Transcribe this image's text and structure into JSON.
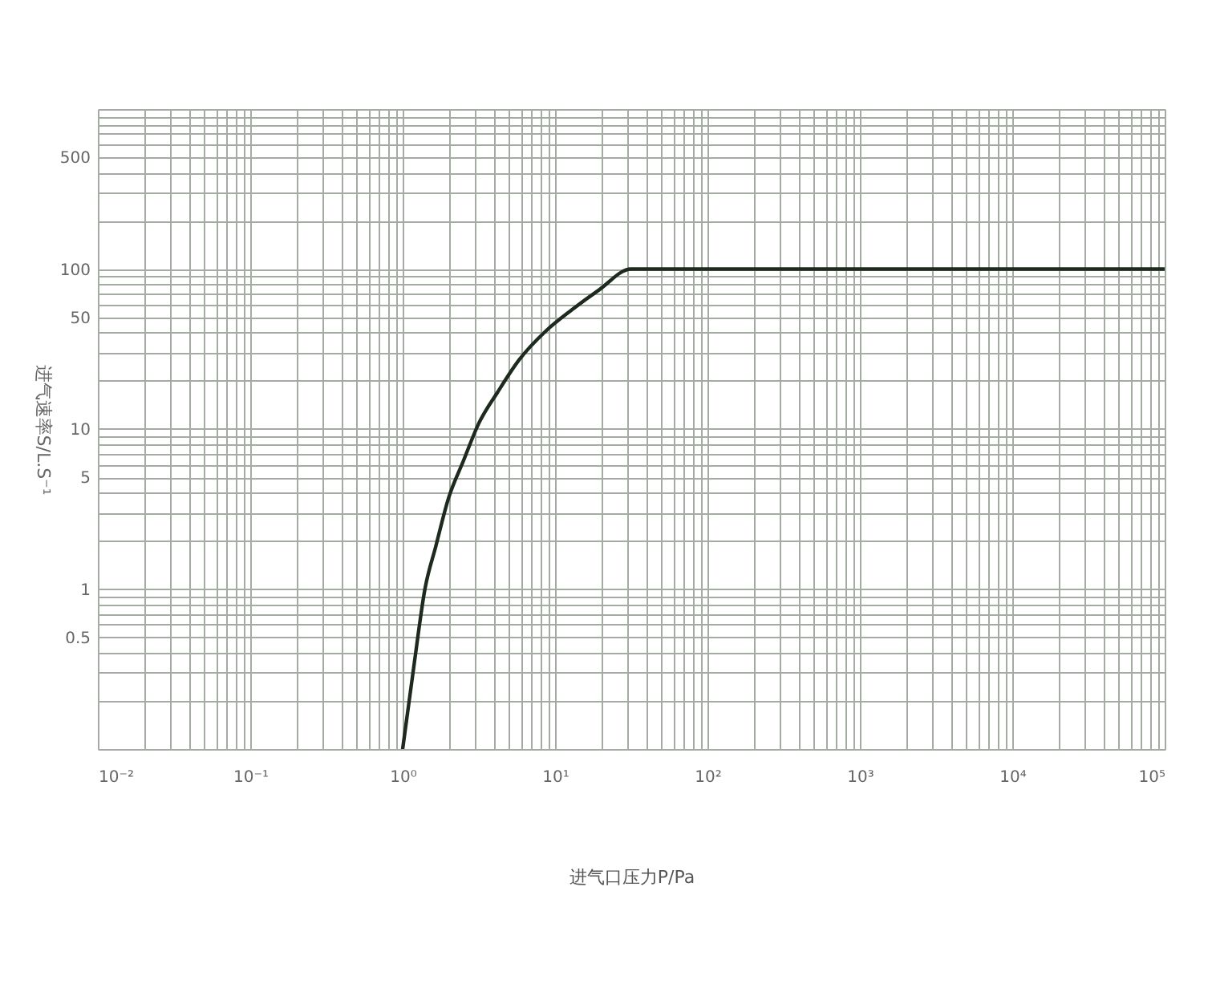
{
  "chart_data": {
    "type": "line",
    "xlabel": "进气口压力P/Pa",
    "ylabel": "进气速率S/L.S⁻¹",
    "x": [
      1.0,
      1.19,
      1.4,
      1.65,
      2.0,
      2.5,
      3.15,
      4.2,
      5.8,
      8.7,
      13,
      19.4,
      31.5,
      100000
    ],
    "values": [
      0.1,
      0.34,
      1.0,
      1.85,
      3.7,
      6.3,
      10.8,
      17,
      27,
      41,
      56,
      74,
      100,
      100
    ],
    "color": "#1e2a1e",
    "xlim": [
      0.01,
      100000
    ],
    "ylim": [
      0.1,
      1000
    ],
    "xticks": [
      {
        "value": 0.01,
        "label": "10⁻²"
      },
      {
        "value": 0.1,
        "label": "10⁻¹"
      },
      {
        "value": 1,
        "label": "10⁰"
      },
      {
        "value": 10,
        "label": "10¹"
      },
      {
        "value": 100,
        "label": "10²"
      },
      {
        "value": 1000,
        "label": "10³"
      },
      {
        "value": 10000,
        "label": "10⁴"
      },
      {
        "value": 100000,
        "label": "10⁵"
      }
    ],
    "yticks": [
      0.5,
      1,
      5,
      10,
      50,
      100,
      500
    ],
    "log": "xy",
    "grid": true
  }
}
